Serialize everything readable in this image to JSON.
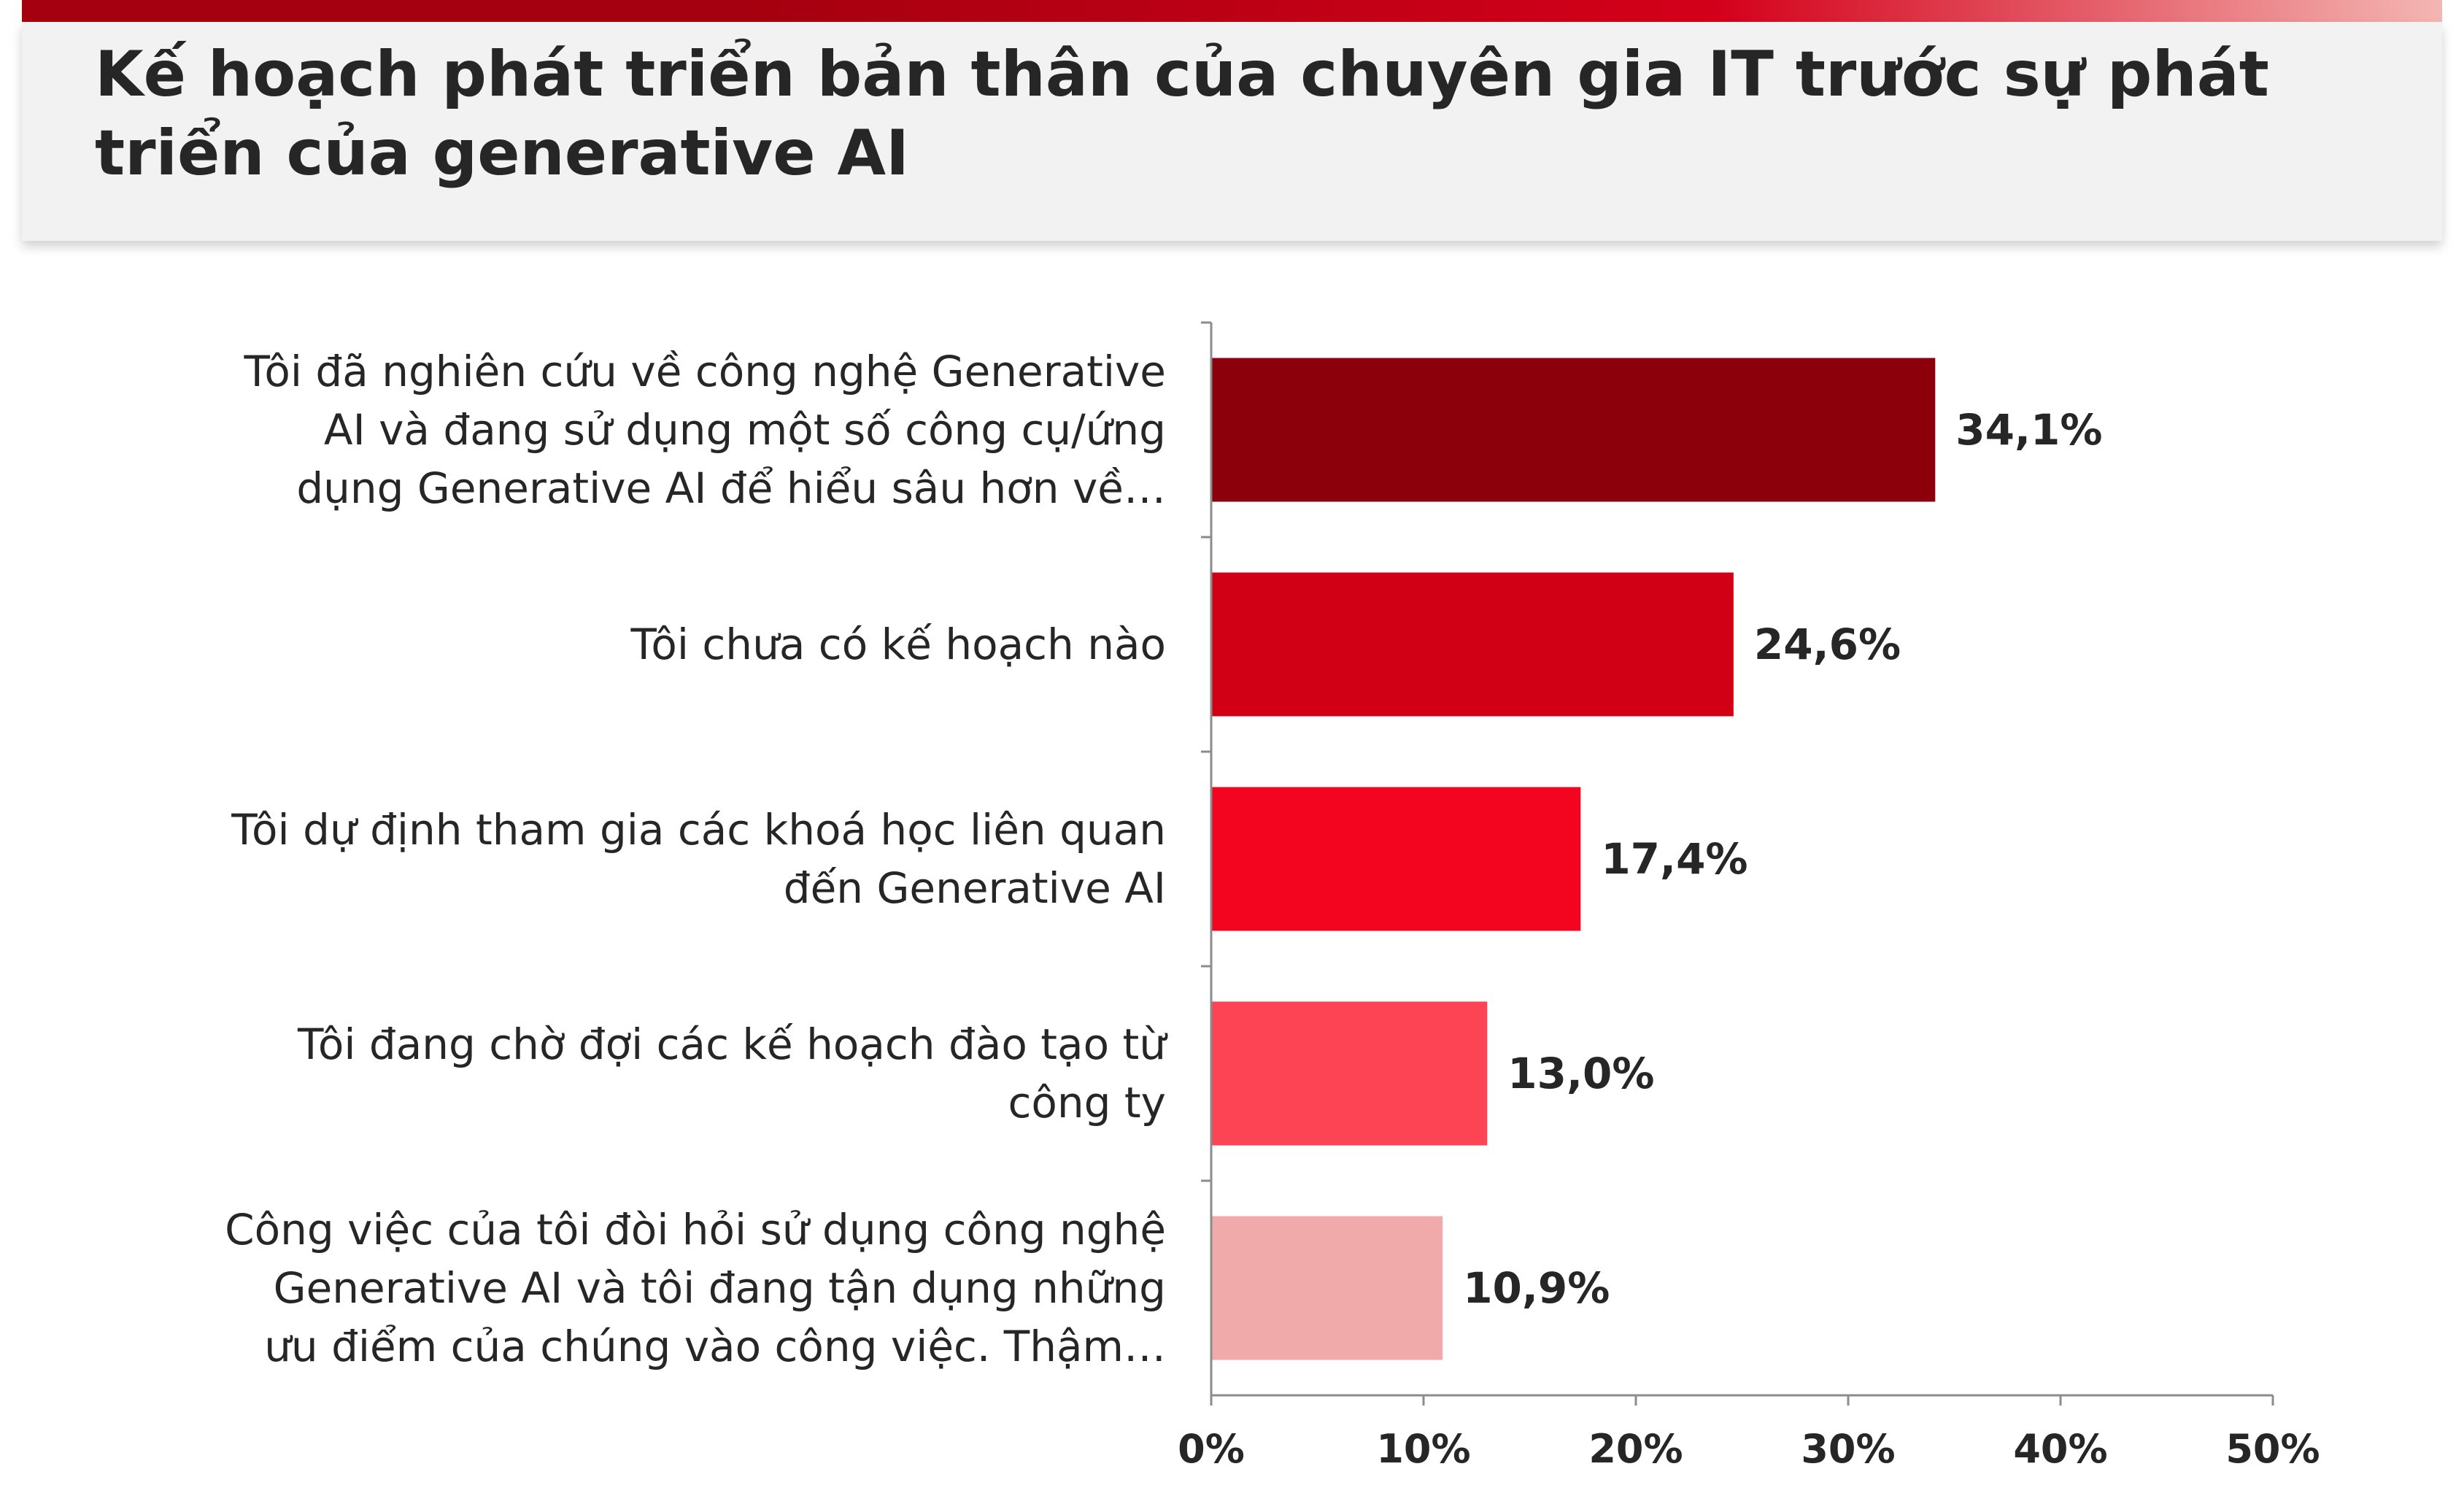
{
  "title": "Kế hoạch phát triển bản thân của chuyên gia IT trước sự phát triển của generative AI",
  "colors": {
    "top_bar_start": "#a5000f",
    "top_bar_end": "#f4b6b3",
    "header_bg": "#f2f2f2",
    "text": "#262626",
    "axis": "#8c8c8c"
  },
  "chart_data": {
    "type": "bar",
    "orientation": "horizontal",
    "categories": [
      [
        "Tôi đã nghiên cứu về công nghệ Generative",
        "AI và đang sử dụng một số công cụ/ứng",
        "dụng Generative AI để hiểu sâu hơn về…"
      ],
      [
        "Tôi chưa có kế hoạch nào"
      ],
      [
        "Tôi dự định tham gia các khoá học liên quan",
        "đến Generative AI"
      ],
      [
        "Tôi đang chờ đợi các kế hoạch đào tạo từ",
        "công ty"
      ],
      [
        "Công việc của tôi đòi hỏi sử dụng công nghệ",
        "Generative AI và tôi đang tận dụng những",
        "ưu điểm của chúng vào công việc. Thậm…"
      ]
    ],
    "values": [
      34.1,
      24.6,
      17.4,
      13.0,
      10.9
    ],
    "value_labels": [
      "34,1%",
      "24,6%",
      "17,4%",
      "13,0%",
      "10,9%"
    ],
    "bar_colors": [
      "#8b000a",
      "#d20014",
      "#f4051f",
      "#fc4454",
      "#f1aaaa"
    ],
    "xlim": [
      0,
      50
    ],
    "x_ticks": [
      0,
      10,
      20,
      30,
      40,
      50
    ],
    "x_tick_labels": [
      "0%",
      "10%",
      "20%",
      "30%",
      "40%",
      "50%"
    ],
    "grid": false,
    "legend": "none"
  }
}
